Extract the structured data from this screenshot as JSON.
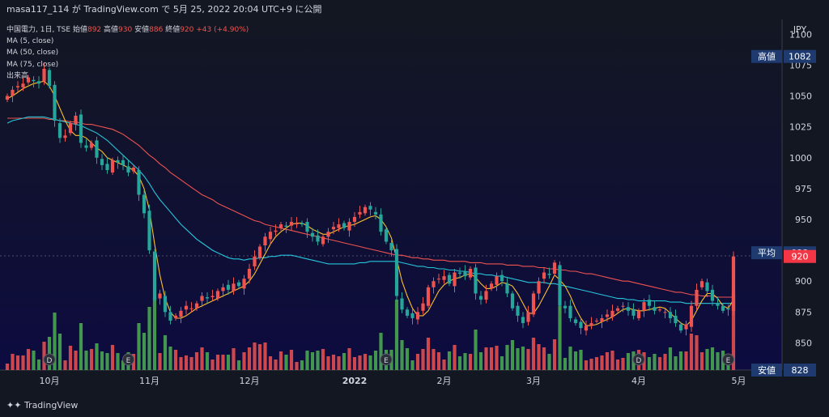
{
  "header": {
    "text": "masa117_114 が TradingView.com で 5月 25, 2022 20:04 UTC+9 に公開"
  },
  "legend": {
    "symbol": "中国電力, 1日, TSE",
    "open_label": "始値",
    "open": "892",
    "high_label": "高値",
    "high": "930",
    "low_label": "安値",
    "low": "886",
    "close_label": "終値",
    "close": "920",
    "change": "+43 (+4.90%)",
    "ma5": "MA (5, close)",
    "ma50": "MA (50, close)",
    "ma75": "MA (75, close)",
    "volume": "出来高"
  },
  "footer": {
    "logo_text": "TradingView"
  },
  "chart_data": {
    "type": "candlestick",
    "currency": "JPY",
    "y_ticks": [
      850,
      875,
      900,
      925,
      950,
      975,
      1000,
      1025,
      1050,
      1075,
      1100
    ],
    "ylim": [
      828,
      1112
    ],
    "x_labels": [
      {
        "label": "10月",
        "index": 8
      },
      {
        "label": "11月",
        "index": 27
      },
      {
        "label": "12月",
        "index": 46
      },
      {
        "label": "2022",
        "index": 66
      },
      {
        "label": "2月",
        "index": 83
      },
      {
        "label": "3月",
        "index": 100
      },
      {
        "label": "4月",
        "index": 120
      },
      {
        "label": "5月",
        "index": 139
      }
    ],
    "close": [
      1050,
      1055,
      1058,
      1060,
      1065,
      1062,
      1060,
      1072,
      1058,
      1030,
      1016,
      1018,
      1028,
      1034,
      1012,
      1008,
      1012,
      1000,
      994,
      990,
      998,
      996,
      994,
      988,
      992,
      970,
      955,
      925,
      885,
      890,
      875,
      868,
      872,
      876,
      880,
      878,
      882,
      888,
      886,
      888,
      892,
      895,
      893,
      898,
      896,
      902,
      910,
      920,
      928,
      936,
      940,
      941,
      946,
      944,
      948,
      947,
      946,
      940,
      936,
      932,
      936,
      940,
      944,
      946,
      943,
      948,
      952,
      956,
      960,
      958,
      954,
      940,
      932,
      925,
      888,
      877,
      872,
      870,
      875,
      882,
      895,
      900,
      902,
      904,
      898,
      907,
      906,
      904,
      910,
      890,
      885,
      892,
      898,
      904,
      900,
      890,
      878,
      872,
      866,
      875,
      890,
      900,
      907,
      905,
      915,
      880,
      878,
      870,
      866,
      862,
      864,
      866,
      868,
      870,
      873,
      876,
      878,
      880,
      876,
      872,
      876,
      883,
      880,
      876,
      877,
      875,
      870,
      866,
      860,
      865,
      880,
      893,
      900,
      892,
      884,
      880,
      876,
      877,
      920
    ],
    "ma5": [
      1048,
      1050,
      1053,
      1056,
      1058,
      1060,
      1061,
      1062,
      1058,
      1050,
      1040,
      1030,
      1022,
      1018,
      1018,
      1016,
      1012,
      1008,
      1005,
      1000,
      998,
      996,
      994,
      992,
      990,
      985,
      975,
      958,
      930,
      905,
      886,
      875,
      870,
      870,
      872,
      875,
      878,
      880,
      882,
      884,
      886,
      888,
      890,
      892,
      894,
      896,
      900,
      906,
      914,
      922,
      930,
      936,
      940,
      943,
      946,
      947,
      947,
      945,
      942,
      940,
      938,
      938,
      940,
      942,
      944,
      945,
      946,
      948,
      950,
      952,
      953,
      950,
      944,
      935,
      918,
      900,
      888,
      878,
      872,
      872,
      876,
      884,
      892,
      897,
      900,
      902,
      903,
      905,
      906,
      903,
      898,
      894,
      894,
      896,
      899,
      898,
      896,
      890,
      882,
      874,
      874,
      880,
      888,
      896,
      905,
      901,
      896,
      888,
      878,
      870,
      864,
      864,
      865,
      867,
      869,
      871,
      874,
      877,
      878,
      877,
      876,
      876,
      877,
      878,
      879,
      878,
      874,
      870,
      866,
      864,
      868,
      876,
      884,
      890,
      890,
      886,
      880,
      878,
      885
    ],
    "ma50": [
      1028,
      1030,
      1031,
      1032,
      1033,
      1033,
      1033,
      1033,
      1032,
      1031,
      1030,
      1029,
      1028,
      1027,
      1026,
      1024,
      1022,
      1020,
      1017,
      1014,
      1010,
      1006,
      1002,
      998,
      994,
      990,
      985,
      979,
      972,
      966,
      961,
      956,
      951,
      946,
      942,
      938,
      934,
      931,
      928,
      925,
      923,
      921,
      919,
      918,
      918,
      917,
      918,
      918,
      919,
      919,
      920,
      920,
      921,
      921,
      921,
      920,
      919,
      918,
      917,
      916,
      915,
      914,
      914,
      914,
      914,
      914,
      914,
      915,
      915,
      916,
      916,
      916,
      916,
      916,
      916,
      915,
      914,
      913,
      912,
      912,
      911,
      911,
      910,
      910,
      909,
      909,
      908,
      908,
      907,
      906,
      906,
      905,
      905,
      904,
      904,
      903,
      902,
      901,
      900,
      899,
      899,
      899,
      899,
      898,
      898,
      897,
      896,
      895,
      894,
      893,
      892,
      891,
      890,
      889,
      888,
      887,
      886,
      886,
      885,
      885,
      884,
      884,
      884,
      884,
      884,
      884,
      883,
      883,
      883,
      882,
      882,
      882,
      882,
      882,
      882,
      882,
      882,
      882,
      882
    ],
    "ma75": [
      1032,
      1032,
      1032,
      1032,
      1032,
      1032,
      1032,
      1032,
      1031,
      1031,
      1030,
      1030,
      1029,
      1029,
      1028,
      1027,
      1027,
      1026,
      1025,
      1024,
      1023,
      1021,
      1019,
      1016,
      1013,
      1010,
      1006,
      1002,
      999,
      995,
      992,
      988,
      985,
      982,
      979,
      976,
      973,
      970,
      968,
      966,
      963,
      961,
      959,
      957,
      955,
      953,
      951,
      949,
      948,
      946,
      945,
      944,
      943,
      942,
      941,
      940,
      939,
      938,
      937,
      936,
      935,
      934,
      933,
      932,
      931,
      930,
      929,
      928,
      927,
      926,
      925,
      924,
      923,
      922,
      921,
      921,
      920,
      919,
      919,
      918,
      918,
      917,
      917,
      917,
      916,
      916,
      916,
      916,
      915,
      915,
      915,
      914,
      914,
      914,
      914,
      913,
      913,
      913,
      912,
      912,
      912,
      911,
      911,
      910,
      910,
      909,
      909,
      908,
      908,
      907,
      906,
      906,
      905,
      904,
      903,
      902,
      901,
      900,
      900,
      899,
      898,
      897,
      896,
      895,
      894,
      893,
      892,
      891,
      891,
      890,
      889,
      889,
      888,
      888,
      888,
      887,
      887,
      887,
      887
    ]
  },
  "markers": [
    {
      "letter": "D",
      "index": 8
    },
    {
      "letter": "E",
      "index": 23
    },
    {
      "letter": "E",
      "index": 72
    },
    {
      "letter": "D",
      "index": 120
    },
    {
      "letter": "E",
      "index": 137
    }
  ],
  "price_tags": [
    {
      "label": "高値",
      "value": "1082",
      "color": "#1e3a6e"
    },
    {
      "label": "平均",
      "value": "923",
      "color": "#1e3a6e"
    },
    {
      "label": "",
      "value": "920",
      "color": "#f23645"
    },
    {
      "label": "安値",
      "value": "828",
      "color": "#1e3a6e"
    }
  ],
  "colors": {
    "up": "#ef5350",
    "down": "#26a69a",
    "vol_up": "#ef5350",
    "vol_down": "#4caf50",
    "ma5": "#fbc02d",
    "ma50": "#26c6da",
    "ma75": "#ef5350",
    "bg_top": "#131722",
    "bg_plot": "#0e0c3a"
  }
}
